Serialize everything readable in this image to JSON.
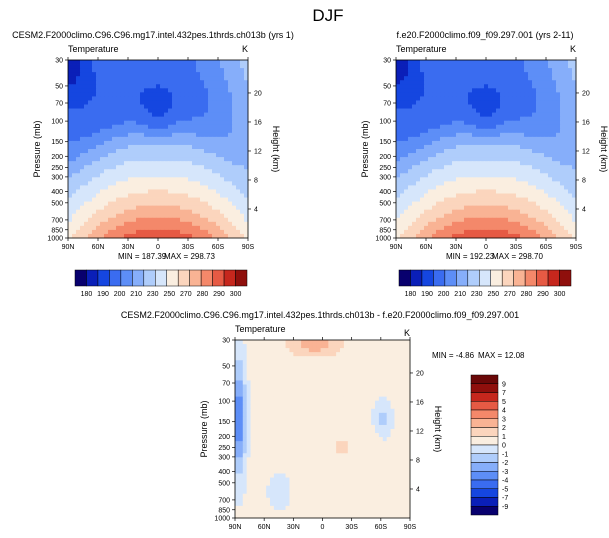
{
  "page_title": "DJF",
  "colors": {
    "temp_levels": [
      180,
      190,
      200,
      210,
      220,
      230,
      240,
      250,
      260,
      270,
      280,
      290,
      300
    ],
    "temp_palette": [
      "#08006e",
      "#0a1fb8",
      "#1546e0",
      "#3a6cf0",
      "#5d8ef7",
      "#86aefa",
      "#afcdfb",
      "#d6e6fb",
      "#faeee0",
      "#fbd5bd",
      "#f9b394",
      "#f4886a",
      "#e65a44",
      "#c6271d",
      "#8f0f0c"
    ],
    "diff_levels": [
      -9,
      -7,
      -5,
      -4,
      -3,
      -2,
      -1,
      0,
      1,
      2,
      3,
      4,
      5,
      7,
      9
    ],
    "diff_palette": [
      "#08006e",
      "#0a1fb8",
      "#1546e0",
      "#3a6cf0",
      "#5d8ef7",
      "#86aefa",
      "#afcdfb",
      "#d6e6fb",
      "#faeee0",
      "#fbd5bd",
      "#f9b394",
      "#f4886a",
      "#e65a44",
      "#c6271d",
      "#8f0f0c",
      "#6a0808"
    ]
  },
  "chart_data": [
    {
      "type": "heatmap",
      "id": "p1",
      "title": "CESM2.F2000climo.C96.C96.mg17.intel.432pes.1thrds.ch013b (yrs 1)",
      "left_title": "Temperature",
      "right_title": "K",
      "ylabel": "Pressure (mb)",
      "ylabel_right": "Height (km)",
      "x_ticks": [
        "90N",
        "60N",
        "30N",
        "0",
        "30S",
        "60S",
        "90S"
      ],
      "x_range": [
        90,
        -90
      ],
      "y_ticks": [
        30,
        50,
        70,
        100,
        150,
        200,
        250,
        300,
        400,
        500,
        700,
        850,
        1000
      ],
      "y_range": [
        30,
        1000
      ],
      "y_right_ticks": [
        4,
        8,
        12,
        16,
        20
      ],
      "min_label": "MIN = 187.39",
      "max_label": "MAX = 298.73",
      "colorbar_labels": [
        "180",
        "190",
        "200",
        "210",
        "230",
        "250",
        "270",
        "280",
        "290",
        "300"
      ]
    },
    {
      "type": "heatmap",
      "id": "p2",
      "title": "f.e20.F2000climo.f09_f09.297.001 (yrs 2-11)",
      "left_title": "Temperature",
      "right_title": "K",
      "ylabel": "Pressure (mb)",
      "ylabel_right": "Height (km)",
      "x_ticks": [
        "90N",
        "60N",
        "30N",
        "0",
        "30S",
        "60S",
        "90S"
      ],
      "x_range": [
        90,
        -90
      ],
      "y_ticks": [
        30,
        50,
        70,
        100,
        150,
        200,
        250,
        300,
        400,
        500,
        700,
        850,
        1000
      ],
      "y_range": [
        30,
        1000
      ],
      "y_right_ticks": [
        4,
        8,
        12,
        16,
        20
      ],
      "min_label": "MIN = 192.23",
      "max_label": "MAX = 298.70",
      "colorbar_labels": [
        "180",
        "190",
        "200",
        "210",
        "230",
        "250",
        "270",
        "280",
        "290",
        "300"
      ]
    },
    {
      "type": "heatmap",
      "id": "p3",
      "title": "CESM2.F2000climo.C96.C96.mg17.intel.432pes.1thrds.ch013b - f.e20.F2000climo.f09_f09.297.001",
      "left_title": "Temperature",
      "right_title": "K",
      "ylabel": "Pressure (mb)",
      "ylabel_right": "Height (km)",
      "x_ticks": [
        "90N",
        "60N",
        "30N",
        "0",
        "30S",
        "60S",
        "90S"
      ],
      "x_range": [
        90,
        -90
      ],
      "y_ticks": [
        30,
        50,
        70,
        100,
        150,
        200,
        250,
        300,
        400,
        500,
        700,
        850,
        1000
      ],
      "y_range": [
        30,
        1000
      ],
      "y_right_ticks": [
        4,
        8,
        12,
        16,
        20
      ],
      "min_label": "MIN = -4.86",
      "max_label": "MAX = 12.08",
      "colorbar_labels": [
        "9",
        "7",
        "5",
        "4",
        "3",
        "2",
        "1",
        "0",
        "-1",
        "-2",
        "-3",
        "-4",
        "-5",
        "-7",
        "-9"
      ]
    }
  ]
}
